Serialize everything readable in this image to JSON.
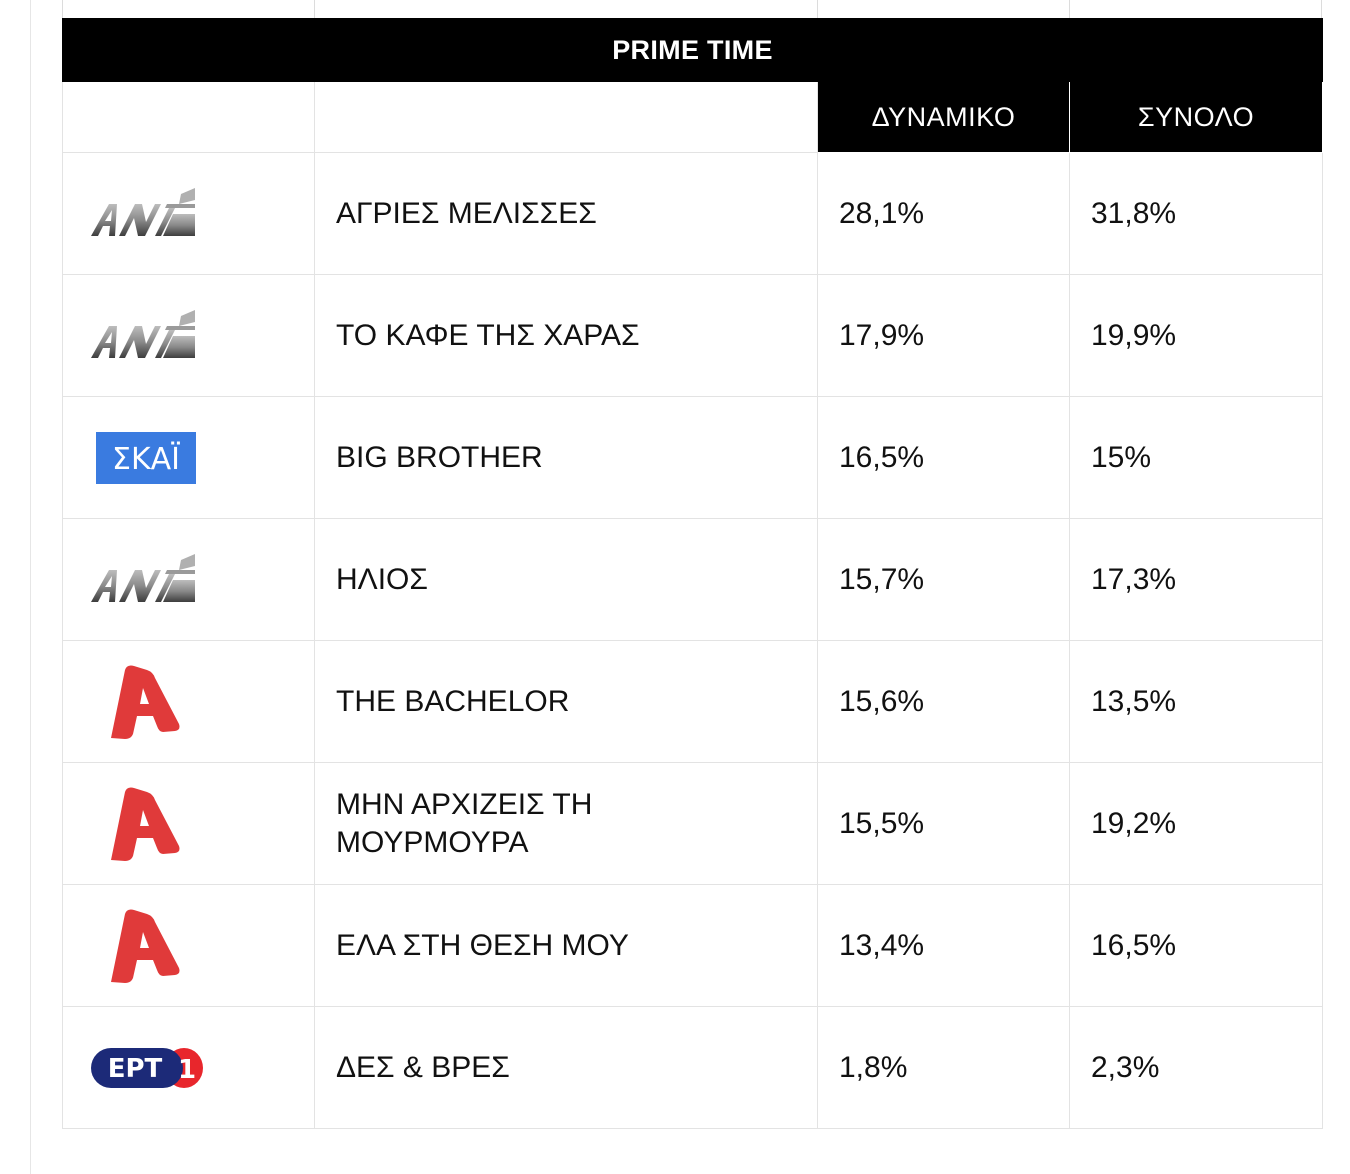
{
  "table": {
    "banner": "PRIME TIME",
    "columns": {
      "dynamic": "ΔΥΝΑΜΙΚΟ",
      "total": "ΣΥΝΟΛΟ"
    },
    "rows": [
      {
        "channel_logo": "ant1-logo",
        "show": "ΑΓΡΙΕΣ ΜΕΛΙΣΣΕΣ",
        "dynamic": "28,1%",
        "total": "31,8%"
      },
      {
        "channel_logo": "ant1-logo",
        "show": "ΤΟ ΚΑΦΕ ΤΗΣ ΧΑΡΑΣ",
        "dynamic": "17,9%",
        "total": "19,9%"
      },
      {
        "channel_logo": "skai-logo",
        "show": "BIG BROTHER",
        "dynamic": "16,5%",
        "total": "15%"
      },
      {
        "channel_logo": "ant1-logo",
        "show": "ΗΛΙΟΣ",
        "dynamic": "15,7%",
        "total": "17,3%"
      },
      {
        "channel_logo": "alpha-logo",
        "show": "THE BACHELOR",
        "dynamic": "15,6%",
        "total": "13,5%"
      },
      {
        "channel_logo": "alpha-logo",
        "show": "ΜΗΝ ΑΡΧΙΖΕΙΣ ΤΗ ΜΟΥΡΜΟΥΡΑ",
        "dynamic": "15,5%",
        "total": "19,2%"
      },
      {
        "channel_logo": "alpha-logo",
        "show": "ΕΛΑ ΣΤΗ ΘΕΣΗ ΜΟΥ",
        "dynamic": "13,4%",
        "total": "16,5%"
      },
      {
        "channel_logo": "ert1-logo",
        "show": "ΔΕΣ & ΒΡΕΣ",
        "dynamic": "1,8%",
        "total": "2,3%"
      }
    ],
    "logo_text": {
      "skai": "ΣΚΑΪ",
      "ert": "ΕΡΤ",
      "ert_num": "1"
    },
    "colors": {
      "banner_bg": "#000000",
      "skai_blue": "#3a7be0",
      "alpha_red": "#e03a3a",
      "ert_navy": "#1c2a78",
      "ert_red": "#e8262c",
      "ant_grey": "#6e6e6e"
    }
  }
}
